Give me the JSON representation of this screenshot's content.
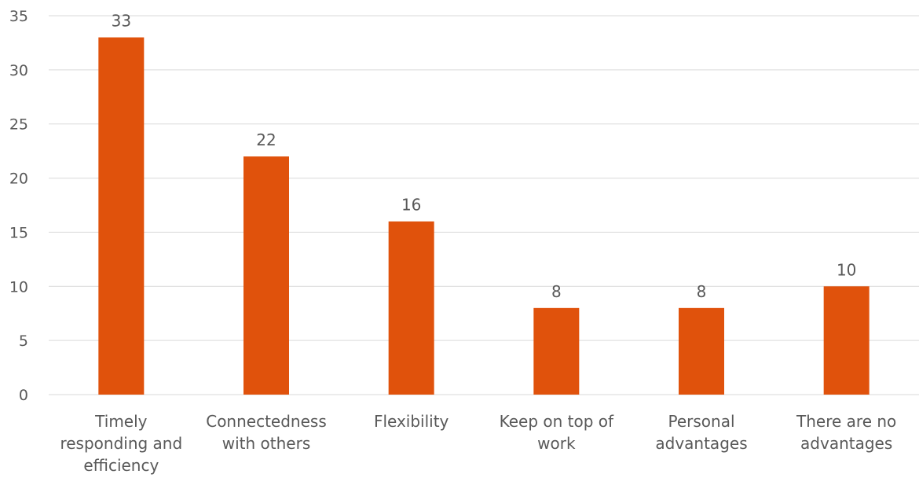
{
  "chart_data": {
    "type": "bar",
    "categories": [
      [
        "Timely",
        "responding and",
        "efficiency"
      ],
      [
        "Connectedness",
        "with others"
      ],
      [
        "Flexibility"
      ],
      [
        "Keep on top of",
        "work"
      ],
      [
        "Personal",
        "advantages"
      ],
      [
        "There are no",
        "advantages"
      ]
    ],
    "values": [
      33,
      22,
      16,
      8,
      8,
      10
    ],
    "data_labels": [
      "33",
      "22",
      "16",
      "8",
      "8",
      "10"
    ],
    "title": "",
    "xlabel": "",
    "ylabel": "",
    "ylim": [
      0,
      35
    ],
    "yticks": [
      "0",
      "5",
      "10",
      "15",
      "20",
      "25",
      "30",
      "35"
    ],
    "grid": true,
    "legend": "none",
    "colors": {
      "bar": "#E0520C",
      "grid": "#d9d9d9",
      "text": "#595959"
    }
  }
}
